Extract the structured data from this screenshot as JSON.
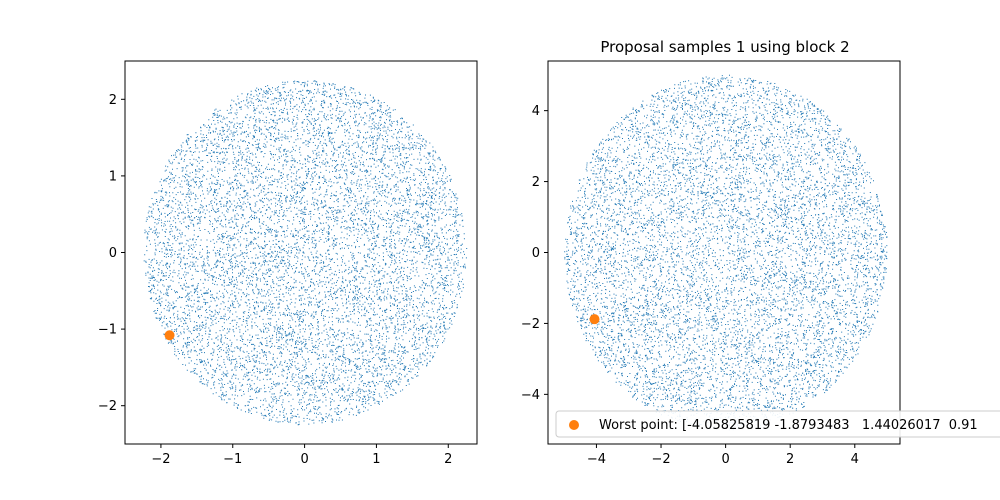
{
  "chart_data": [
    {
      "type": "scatter",
      "title": "",
      "xlabel": "",
      "ylabel": "",
      "xlim": [
        -2.5,
        2.4
      ],
      "ylim": [
        -2.5,
        2.5
      ],
      "xticks": [
        -2,
        -1,
        0,
        1,
        2
      ],
      "yticks": [
        -2,
        -1,
        0,
        1,
        2
      ],
      "xtick_labels": [
        "−2",
        "−1",
        "0",
        "1",
        "2"
      ],
      "ytick_labels": [
        "−2",
        "−1",
        "0",
        "1",
        "2"
      ],
      "grid": false,
      "series": [
        {
          "kind": "dense-cloud",
          "color": "#1f77b4",
          "center": [
            0,
            0
          ],
          "radius": 2.25,
          "count": 9000
        },
        {
          "kind": "highlight",
          "color": "#ff7f0e",
          "points": [
            [
              -1.88,
              -1.08
            ]
          ]
        }
      ]
    },
    {
      "type": "scatter",
      "title": "Proposal samples 1 using block 2",
      "xlabel": "",
      "ylabel": "",
      "xlim": [
        -5.5,
        5.4
      ],
      "ylim": [
        -5.4,
        5.4
      ],
      "xticks": [
        -4,
        -2,
        0,
        2,
        4
      ],
      "yticks": [
        -4,
        -2,
        0,
        2,
        4
      ],
      "xtick_labels": [
        "−4",
        "−2",
        "0",
        "2",
        "4"
      ],
      "ytick_labels": [
        "−4",
        "−2",
        "0",
        "2",
        "4"
      ],
      "grid": false,
      "legend": {
        "placement": "lower-right",
        "entries": [
          {
            "label": "Worst point: [-4.05825819 -1.8793483   1.44026017  0.91",
            "color": "#ff7f0e"
          }
        ]
      },
      "series": [
        {
          "kind": "dense-cloud",
          "color": "#1f77b4",
          "center": [
            0,
            0
          ],
          "radius": 5.0,
          "count": 9000
        },
        {
          "kind": "highlight",
          "name": "Worst point: [-4.05825819 -1.8793483   1.44026017  0.91",
          "color": "#ff7f0e",
          "points": [
            [
              -4.06,
              -1.88
            ]
          ]
        }
      ]
    }
  ]
}
